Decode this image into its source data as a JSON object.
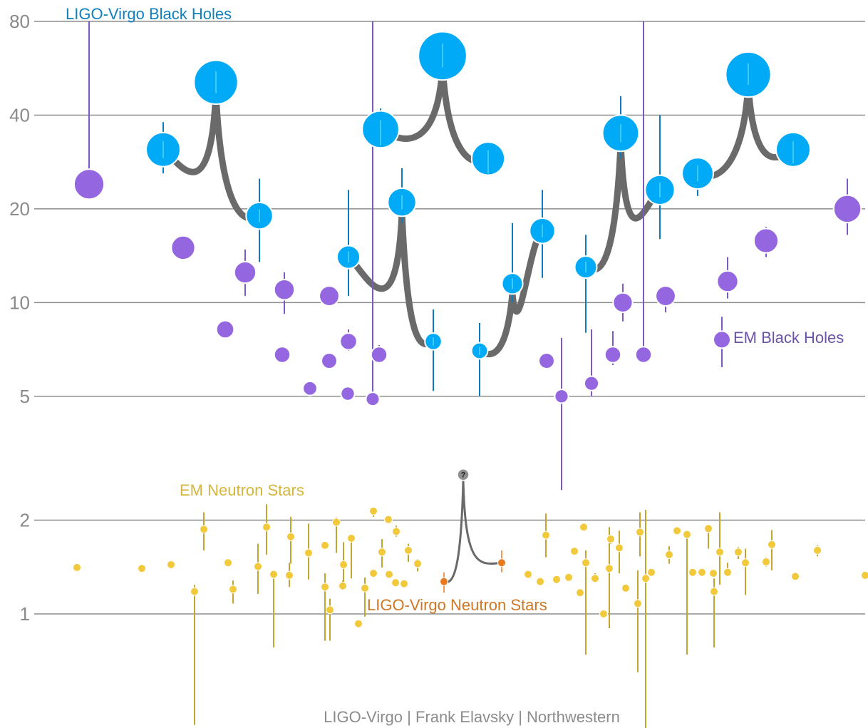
{
  "chart_data": {
    "type": "scatter",
    "title": "",
    "xlabel": "",
    "ylabel": "",
    "y_scale": "log",
    "ylim": [
      0.4,
      80
    ],
    "y_ticks": [
      1,
      2,
      5,
      10,
      20,
      40,
      80
    ],
    "y_tick_labels": [
      "1",
      "2",
      "5",
      "10",
      "20",
      "40",
      "80"
    ],
    "grid": "horizontal",
    "credit": "LIGO-Virgo | Frank Elavsky | Northwestern",
    "colors": {
      "ligo_bh": "#00aaf7",
      "ligo_bh_err": "#0e7bc0",
      "em_bh": "#9467e0",
      "em_bh_err": "#7c58c8",
      "em_ns": "#f2c93b",
      "em_ns_err": "#c2a62f",
      "ligo_ns": "#e8791f",
      "merger": "#6a6a6a",
      "unknown": "#8f8f8f",
      "grid": "#8e8e8e"
    },
    "series": [
      {
        "name": "LIGO-Virgo Black Holes",
        "label_color": "#1280bd",
        "merger_events": [
          {
            "m1": 31,
            "m2": 19,
            "final": 51,
            "m1_err": [
              26,
              38
            ],
            "m2_err": [
              13.5,
              25
            ],
            "final_err": [
              43,
              58
            ]
          },
          {
            "m1": 14,
            "m2": 7.5,
            "final": 21,
            "m1_err": [
              10.5,
              23
            ],
            "m2_err": [
              5.2,
              9.5
            ],
            "final_err": [
              18,
              27
            ]
          },
          {
            "m1": 36,
            "m2": 29,
            "final": 62,
            "m1_err": [
              32,
              42
            ],
            "m2_err": [
              26,
              32
            ],
            "final_err": [
              57,
              66
            ]
          },
          {
            "m1": 7,
            "m2": 17,
            "final": 11.5,
            "m1_err": [
              5,
              8.6
            ],
            "m2_err": [
              12,
              23
            ],
            "final_err": [
              10,
              18
            ]
          },
          {
            "m1": 13,
            "m2": 23,
            "final": 35,
            "m1_err": [
              8,
              16.5
            ],
            "m2_err": [
              16,
              40
            ],
            "final_err": [
              29,
              46
            ]
          },
          {
            "m1": 26,
            "m2": 31,
            "final": 54,
            "m1_err": [
              22,
              28
            ],
            "m2_err": [
              28,
              35
            ],
            "final_err": [
              50,
              57
            ]
          }
        ]
      },
      {
        "name": "EM Black Holes",
        "label_color": "#6b51a8",
        "values": [
          24,
          15,
          8.2,
          12.5,
          6.8,
          11,
          5.3,
          6.5,
          10.5,
          5.1,
          7.5,
          6.8,
          4.9,
          6.5,
          5,
          5.5,
          6.8,
          10,
          6.8,
          10.5,
          11.7,
          15.8,
          20
        ],
        "errors": [
          [
            22,
            80
          ],
          [
            15,
            15
          ],
          [
            8.2,
            8.2
          ],
          [
            10.5,
            14.8
          ],
          [
            6.8,
            6.8
          ],
          [
            9.2,
            12.5
          ],
          [
            5.3,
            5.3
          ],
          [
            6.5,
            6.5
          ],
          [
            10.5,
            10.5
          ],
          [
            5.1,
            5.1
          ],
          [
            7,
            8.2
          ],
          [
            6.4,
            7.3
          ],
          [
            4.9,
            80
          ],
          [
            6.5,
            6.5
          ],
          [
            2.5,
            7.7
          ],
          [
            5,
            8.2
          ],
          [
            6.3,
            8.1
          ],
          [
            8.7,
            11.5
          ],
          [
            6.8,
            80
          ],
          [
            9.3,
            11
          ],
          [
            10.3,
            14
          ],
          [
            14,
            17.5
          ],
          [
            16.5,
            25
          ]
        ]
      },
      {
        "name": "EM Neutron Stars",
        "label_color": "#d6b63e",
        "values": [
          1.41,
          1.4,
          1.44,
          1.18,
          1.87,
          1.46,
          1.2,
          1.42,
          1.9,
          1.34,
          1.33,
          1.77,
          1.57,
          1.22,
          1.03,
          1.66,
          1.97,
          1.23,
          1.44,
          1.21,
          1.75,
          0.93,
          1.35,
          2.14,
          1.58,
          1.34,
          1.25,
          2.01,
          1.84,
          1.6,
          1.26,
          1.45,
          1.34,
          1.27,
          1.29,
          1.79,
          1.31,
          1.59,
          1.17,
          1.9,
          1.46,
          1.3,
          1.4,
          1.0,
          1.74,
          1.63,
          1.21,
          1.08,
          1.83,
          1.3,
          1.36,
          1.85,
          1.55,
          1.36,
          1.8,
          1.36,
          1.88,
          1.35,
          1.18,
          1.58,
          1.36,
          1.58,
          1.46,
          1.47,
          1.67,
          1.32,
          1.6,
          1.33
        ],
        "errors": [
          [
            1.41,
            1.41
          ],
          [
            1.4,
            1.4
          ],
          [
            1.44,
            1.44
          ],
          [
            0.44,
            1.24
          ],
          [
            1.6,
            2.12
          ],
          [
            1.46,
            1.46
          ],
          [
            1.08,
            1.28
          ],
          [
            1.16,
            1.68
          ],
          [
            1.55,
            2.25
          ],
          [
            0.78,
            1.34
          ],
          [
            1.22,
            1.46
          ],
          [
            1.45,
            2.05
          ],
          [
            1.29,
            1.95
          ],
          [
            0.82,
            1.35
          ],
          [
            0.82,
            1.12
          ],
          [
            1.66,
            1.66
          ],
          [
            1.57,
            2.04
          ],
          [
            1.2,
            1.28
          ],
          [
            1.24,
            1.7
          ],
          [
            0.98,
            1.31
          ],
          [
            1.3,
            1.8
          ],
          [
            0.93,
            0.93
          ],
          [
            1.31,
            1.39
          ],
          [
            2.05,
            2.2
          ],
          [
            1.41,
            1.74
          ],
          [
            1.3,
            1.36
          ],
          [
            1.25,
            1.25
          ],
          [
            2.01,
            2.01
          ],
          [
            1.77,
            1.92
          ],
          [
            1.47,
            1.68
          ],
          [
            1.26,
            1.26
          ],
          [
            1.37,
            1.5
          ],
          [
            1.34,
            1.34
          ],
          [
            1.27,
            1.27
          ],
          [
            1.29,
            1.29
          ],
          [
            1.52,
            2.1
          ],
          [
            1.31,
            1.31
          ],
          [
            1.59,
            1.59
          ],
          [
            1.17,
            1.17
          ],
          [
            1.9,
            1.9
          ],
          [
            0.74,
            1.6
          ],
          [
            1.26,
            1.35
          ],
          [
            0.9,
            1.9
          ],
          [
            0.97,
            1.03
          ],
          [
            1.68,
            1.77
          ],
          [
            1.35,
            1.85
          ],
          [
            1.21,
            1.21
          ],
          [
            0.65,
            1.38
          ],
          [
            1.53,
            2.12
          ],
          [
            0.42,
            2.16
          ],
          [
            1.36,
            1.36
          ],
          [
            1.85,
            1.85
          ],
          [
            1.45,
            1.65
          ],
          [
            1.36,
            1.36
          ],
          [
            0.74,
            1.8
          ],
          [
            1.36,
            1.36
          ],
          [
            1.62,
            1.92
          ],
          [
            1.35,
            1.35
          ],
          [
            0.78,
            1.3
          ],
          [
            1.24,
            2.12
          ],
          [
            1.36,
            1.46
          ],
          [
            1.5,
            1.64
          ],
          [
            1.15,
            1.62
          ],
          [
            1.42,
            1.52
          ],
          [
            1.38,
            1.86
          ],
          [
            1.32,
            1.32
          ],
          [
            1.53,
            1.66
          ],
          [
            1.33,
            1.33
          ]
        ]
      },
      {
        "name": "LIGO-Virgo Neutron Stars",
        "label_color": "#d07725",
        "merger_events": [
          {
            "m1": 1.27,
            "m2": 1.46,
            "final": 2.8,
            "m1_err": [
              1.17,
              1.36
            ],
            "m2_err": [
              1.36,
              1.6
            ],
            "final_label": "?"
          }
        ]
      }
    ]
  }
}
